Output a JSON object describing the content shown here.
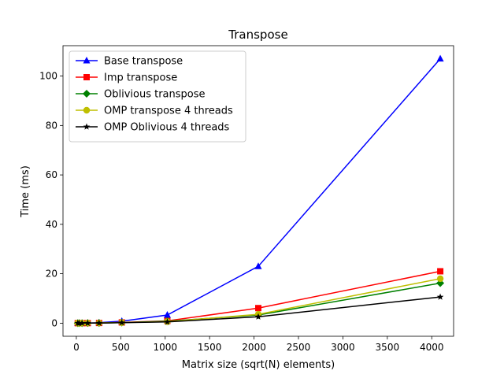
{
  "chart_data": {
    "type": "line",
    "title": "Transpose",
    "xlabel": "Matrix size (sqrt(N) elements)",
    "ylabel": "Time (ms)",
    "xlim": [
      -150,
      4246
    ],
    "ylim": [
      -5.3,
      112.3
    ],
    "xticks": [
      0,
      500,
      1000,
      1500,
      2000,
      2500,
      3000,
      3500,
      4000
    ],
    "yticks": [
      0,
      20,
      40,
      60,
      80,
      100
    ],
    "grid": false,
    "legend_position": "top-left",
    "x": [
      16,
      32,
      64,
      128,
      256,
      512,
      1024,
      2048,
      4096
    ],
    "series": [
      {
        "name": "Base transpose",
        "color": "#0000ff",
        "marker": "triangle",
        "values": [
          0.0,
          0.0,
          0.0,
          0.05,
          0.2,
          0.8,
          3.3,
          23.0,
          107.0
        ]
      },
      {
        "name": "Imp transpose",
        "color": "#ff0000",
        "marker": "square",
        "values": [
          0.0,
          0.0,
          0.0,
          0.02,
          0.08,
          0.3,
          0.9,
          6.1,
          21.0
        ]
      },
      {
        "name": "Oblivious transpose",
        "color": "#008000",
        "marker": "diamond",
        "values": [
          0.0,
          0.0,
          0.0,
          0.02,
          0.07,
          0.25,
          0.8,
          3.3,
          16.2
        ]
      },
      {
        "name": "OMP transpose 4 threads",
        "color": "#bfbf00",
        "marker": "circle",
        "values": [
          0.0,
          0.0,
          0.0,
          0.02,
          0.06,
          0.22,
          0.6,
          3.6,
          18.0
        ]
      },
      {
        "name": "OMP Oblivious 4 threads",
        "color": "#000000",
        "marker": "star",
        "values": [
          0.0,
          0.0,
          0.0,
          0.02,
          0.05,
          0.2,
          0.5,
          2.6,
          10.6
        ]
      }
    ]
  }
}
